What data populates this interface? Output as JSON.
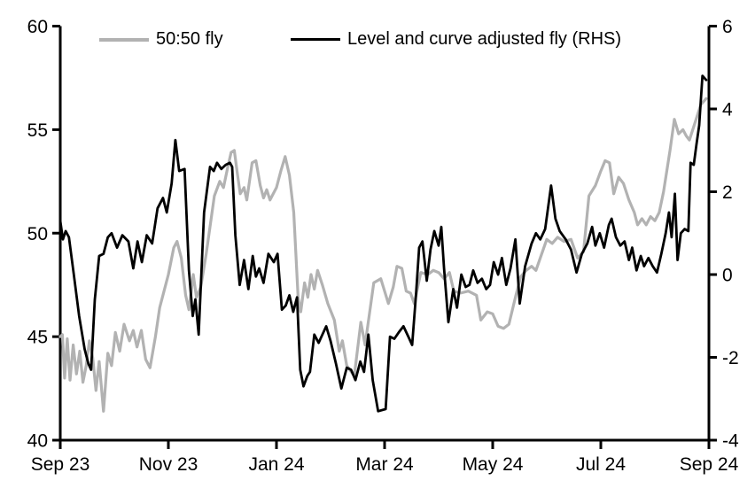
{
  "legend": [
    {
      "label": "50:50 fly"
    },
    {
      "label": "Level and curve adjusted fly (RHS)"
    }
  ],
  "chart_data": {
    "type": "line",
    "title": "",
    "xlabel": "",
    "ylabel_left": "",
    "ylabel_right": "",
    "x_tick_labels": [
      "Sep 23",
      "Nov 23",
      "Jan 24",
      "Mar 24",
      "May 24",
      "Jul 24",
      "Sep 24"
    ],
    "x_range_months": [
      0,
      12
    ],
    "left_axis": {
      "ticks": [
        40,
        45,
        50,
        55,
        60
      ],
      "range": [
        40,
        60
      ]
    },
    "right_axis": {
      "ticks": [
        -4,
        -2,
        0,
        2,
        4,
        6
      ],
      "range": [
        -4,
        6
      ]
    },
    "grid": false,
    "legend_position": "top",
    "axis_color": "#000000",
    "series": [
      {
        "name": "50:50 fly",
        "axis": "left",
        "color": "#b2b2b2",
        "width": 3.2,
        "points": [
          [
            0.0,
            45.0
          ],
          [
            0.04,
            45.1
          ],
          [
            0.08,
            43.0
          ],
          [
            0.13,
            44.9
          ],
          [
            0.18,
            42.9
          ],
          [
            0.24,
            44.6
          ],
          [
            0.3,
            43.2
          ],
          [
            0.36,
            44.3
          ],
          [
            0.42,
            42.8
          ],
          [
            0.48,
            43.6
          ],
          [
            0.54,
            44.8
          ],
          [
            0.6,
            44.0
          ],
          [
            0.66,
            42.4
          ],
          [
            0.72,
            43.8
          ],
          [
            0.8,
            41.4
          ],
          [
            0.88,
            44.2
          ],
          [
            0.95,
            43.6
          ],
          [
            1.02,
            45.2
          ],
          [
            1.1,
            44.3
          ],
          [
            1.18,
            45.6
          ],
          [
            1.28,
            44.8
          ],
          [
            1.35,
            45.3
          ],
          [
            1.42,
            44.5
          ],
          [
            1.5,
            45.3
          ],
          [
            1.58,
            43.9
          ],
          [
            1.66,
            43.5
          ],
          [
            1.76,
            45.0
          ],
          [
            1.84,
            46.4
          ],
          [
            1.92,
            47.2
          ],
          [
            2.0,
            48.0
          ],
          [
            2.1,
            49.3
          ],
          [
            2.16,
            49.6
          ],
          [
            2.24,
            48.8
          ],
          [
            2.32,
            47.0
          ],
          [
            2.38,
            46.3
          ],
          [
            2.46,
            48.0
          ],
          [
            2.52,
            46.9
          ],
          [
            2.6,
            47.4
          ],
          [
            2.7,
            49.0
          ],
          [
            2.85,
            51.8
          ],
          [
            2.95,
            52.5
          ],
          [
            3.02,
            52.2
          ],
          [
            3.1,
            53.2
          ],
          [
            3.16,
            53.9
          ],
          [
            3.22,
            54.0
          ],
          [
            3.28,
            52.8
          ],
          [
            3.33,
            51.9
          ],
          [
            3.4,
            52.2
          ],
          [
            3.45,
            51.6
          ],
          [
            3.55,
            53.4
          ],
          [
            3.62,
            53.5
          ],
          [
            3.7,
            52.3
          ],
          [
            3.76,
            51.7
          ],
          [
            3.82,
            52.1
          ],
          [
            3.88,
            51.6
          ],
          [
            4.0,
            52.2
          ],
          [
            4.08,
            53.0
          ],
          [
            4.16,
            53.7
          ],
          [
            4.24,
            52.8
          ],
          [
            4.32,
            51.0
          ],
          [
            4.4,
            46.9
          ],
          [
            4.45,
            46.2
          ],
          [
            4.52,
            47.6
          ],
          [
            4.58,
            46.9
          ],
          [
            4.64,
            48.0
          ],
          [
            4.7,
            47.3
          ],
          [
            4.76,
            48.2
          ],
          [
            4.85,
            47.5
          ],
          [
            4.95,
            46.6
          ],
          [
            5.07,
            45.8
          ],
          [
            5.16,
            44.3
          ],
          [
            5.22,
            44.8
          ],
          [
            5.3,
            43.6
          ],
          [
            5.44,
            43.1
          ],
          [
            5.56,
            45.7
          ],
          [
            5.64,
            44.6
          ],
          [
            5.8,
            47.6
          ],
          [
            5.93,
            47.8
          ],
          [
            6.07,
            46.6
          ],
          [
            6.16,
            47.4
          ],
          [
            6.23,
            48.4
          ],
          [
            6.32,
            48.3
          ],
          [
            6.4,
            47.2
          ],
          [
            6.48,
            47.1
          ],
          [
            6.55,
            46.6
          ],
          [
            6.67,
            48.1
          ],
          [
            6.8,
            48.0
          ],
          [
            6.9,
            48.2
          ],
          [
            7.0,
            48.1
          ],
          [
            7.1,
            47.8
          ],
          [
            7.2,
            48.1
          ],
          [
            7.28,
            47.2
          ],
          [
            7.4,
            47.1
          ],
          [
            7.55,
            47.2
          ],
          [
            7.7,
            47.0
          ],
          [
            7.78,
            45.8
          ],
          [
            7.9,
            46.2
          ],
          [
            8.0,
            46.1
          ],
          [
            8.1,
            45.5
          ],
          [
            8.2,
            45.4
          ],
          [
            8.3,
            45.6
          ],
          [
            8.43,
            47.0
          ],
          [
            8.52,
            47.9
          ],
          [
            8.62,
            48.2
          ],
          [
            8.72,
            48.4
          ],
          [
            8.8,
            48.2
          ],
          [
            9.0,
            49.7
          ],
          [
            9.1,
            49.5
          ],
          [
            9.2,
            49.8
          ],
          [
            9.32,
            49.6
          ],
          [
            9.45,
            49.7
          ],
          [
            9.57,
            48.8
          ],
          [
            9.68,
            49.1
          ],
          [
            9.78,
            51.8
          ],
          [
            9.9,
            52.3
          ],
          [
            10.0,
            53.0
          ],
          [
            10.08,
            53.5
          ],
          [
            10.16,
            53.4
          ],
          [
            10.24,
            51.9
          ],
          [
            10.33,
            52.7
          ],
          [
            10.42,
            52.4
          ],
          [
            10.52,
            51.6
          ],
          [
            10.62,
            51.0
          ],
          [
            10.68,
            50.4
          ],
          [
            10.76,
            50.7
          ],
          [
            10.84,
            50.4
          ],
          [
            10.92,
            50.8
          ],
          [
            11.0,
            50.6
          ],
          [
            11.08,
            51.0
          ],
          [
            11.16,
            52.0
          ],
          [
            11.28,
            54.0
          ],
          [
            11.36,
            55.5
          ],
          [
            11.44,
            54.8
          ],
          [
            11.52,
            55.0
          ],
          [
            11.58,
            54.7
          ],
          [
            11.64,
            54.5
          ],
          [
            11.75,
            55.4
          ],
          [
            11.85,
            56.2
          ],
          [
            11.95,
            56.5
          ]
        ]
      },
      {
        "name": "Level and curve adjusted fly (RHS)",
        "axis": "right",
        "color": "#000000",
        "width": 2.8,
        "points": [
          [
            0.0,
            1.3
          ],
          [
            0.05,
            0.85
          ],
          [
            0.1,
            1.05
          ],
          [
            0.16,
            0.9
          ],
          [
            0.25,
            0.0
          ],
          [
            0.35,
            -1.0
          ],
          [
            0.45,
            -1.8
          ],
          [
            0.52,
            -2.15
          ],
          [
            0.57,
            -2.3
          ],
          [
            0.64,
            -0.6
          ],
          [
            0.72,
            0.45
          ],
          [
            0.8,
            0.5
          ],
          [
            0.88,
            0.9
          ],
          [
            0.95,
            1.0
          ],
          [
            1.05,
            0.65
          ],
          [
            1.15,
            0.95
          ],
          [
            1.26,
            0.8
          ],
          [
            1.35,
            0.15
          ],
          [
            1.43,
            0.8
          ],
          [
            1.51,
            0.3
          ],
          [
            1.6,
            0.95
          ],
          [
            1.7,
            0.75
          ],
          [
            1.8,
            1.6
          ],
          [
            1.9,
            1.85
          ],
          [
            1.97,
            1.5
          ],
          [
            2.06,
            2.2
          ],
          [
            2.13,
            3.25
          ],
          [
            2.2,
            2.5
          ],
          [
            2.3,
            2.55
          ],
          [
            2.38,
            0.1
          ],
          [
            2.45,
            -1.0
          ],
          [
            2.5,
            -0.6
          ],
          [
            2.56,
            -1.45
          ],
          [
            2.66,
            1.5
          ],
          [
            2.77,
            2.6
          ],
          [
            2.84,
            2.5
          ],
          [
            2.9,
            2.7
          ],
          [
            2.98,
            2.55
          ],
          [
            3.06,
            2.65
          ],
          [
            3.14,
            2.7
          ],
          [
            3.18,
            2.6
          ],
          [
            3.24,
            0.95
          ],
          [
            3.32,
            -0.25
          ],
          [
            3.4,
            0.35
          ],
          [
            3.48,
            -0.35
          ],
          [
            3.56,
            0.45
          ],
          [
            3.62,
            -0.05
          ],
          [
            3.68,
            0.15
          ],
          [
            3.76,
            -0.2
          ],
          [
            3.85,
            0.5
          ],
          [
            3.95,
            0.3
          ],
          [
            4.02,
            0.5
          ],
          [
            4.1,
            -0.85
          ],
          [
            4.17,
            -0.75
          ],
          [
            4.24,
            -0.5
          ],
          [
            4.31,
            -0.9
          ],
          [
            4.38,
            -0.55
          ],
          [
            4.44,
            -2.3
          ],
          [
            4.5,
            -2.7
          ],
          [
            4.57,
            -2.45
          ],
          [
            4.62,
            -2.35
          ],
          [
            4.7,
            -1.45
          ],
          [
            4.78,
            -1.65
          ],
          [
            4.85,
            -1.45
          ],
          [
            4.92,
            -1.25
          ],
          [
            5.0,
            -1.6
          ],
          [
            5.1,
            -2.15
          ],
          [
            5.2,
            -2.75
          ],
          [
            5.3,
            -2.25
          ],
          [
            5.38,
            -2.3
          ],
          [
            5.46,
            -2.55
          ],
          [
            5.55,
            -2.1
          ],
          [
            5.62,
            -2.35
          ],
          [
            5.7,
            -1.45
          ],
          [
            5.78,
            -2.55
          ],
          [
            5.88,
            -3.3
          ],
          [
            6.02,
            -3.25
          ],
          [
            6.1,
            -1.5
          ],
          [
            6.18,
            -1.55
          ],
          [
            6.26,
            -1.4
          ],
          [
            6.35,
            -1.25
          ],
          [
            6.44,
            -1.5
          ],
          [
            6.51,
            -1.7
          ],
          [
            6.58,
            -0.5
          ],
          [
            6.64,
            0.65
          ],
          [
            6.7,
            0.8
          ],
          [
            6.78,
            -0.15
          ],
          [
            6.85,
            0.6
          ],
          [
            6.92,
            1.05
          ],
          [
            7.0,
            0.7
          ],
          [
            7.05,
            1.15
          ],
          [
            7.1,
            0.15
          ],
          [
            7.18,
            -1.15
          ],
          [
            7.27,
            -0.35
          ],
          [
            7.34,
            -0.8
          ],
          [
            7.42,
            0.0
          ],
          [
            7.5,
            -0.3
          ],
          [
            7.57,
            -0.25
          ],
          [
            7.64,
            0.1
          ],
          [
            7.72,
            -0.2
          ],
          [
            7.8,
            -0.1
          ],
          [
            7.88,
            -0.35
          ],
          [
            7.95,
            -0.25
          ],
          [
            8.02,
            0.3
          ],
          [
            8.1,
            0.0
          ],
          [
            8.17,
            0.4
          ],
          [
            8.25,
            -0.25
          ],
          [
            8.33,
            0.15
          ],
          [
            8.42,
            0.85
          ],
          [
            8.5,
            -0.7
          ],
          [
            8.6,
            0.2
          ],
          [
            8.72,
            0.75
          ],
          [
            8.8,
            1.0
          ],
          [
            8.88,
            0.85
          ],
          [
            8.97,
            1.1
          ],
          [
            9.08,
            2.15
          ],
          [
            9.16,
            1.35
          ],
          [
            9.24,
            1.05
          ],
          [
            9.35,
            0.85
          ],
          [
            9.45,
            0.6
          ],
          [
            9.55,
            0.05
          ],
          [
            9.65,
            0.5
          ],
          [
            9.75,
            0.75
          ],
          [
            9.84,
            1.15
          ],
          [
            9.9,
            0.7
          ],
          [
            9.98,
            1.0
          ],
          [
            10.06,
            0.65
          ],
          [
            10.15,
            1.2
          ],
          [
            10.2,
            1.35
          ],
          [
            10.28,
            0.9
          ],
          [
            10.36,
            0.7
          ],
          [
            10.44,
            0.8
          ],
          [
            10.52,
            0.35
          ],
          [
            10.58,
            0.65
          ],
          [
            10.66,
            0.1
          ],
          [
            10.74,
            0.45
          ],
          [
            10.8,
            0.2
          ],
          [
            10.88,
            0.4
          ],
          [
            10.96,
            0.2
          ],
          [
            11.04,
            0.05
          ],
          [
            11.12,
            0.5
          ],
          [
            11.2,
            1.0
          ],
          [
            11.26,
            1.5
          ],
          [
            11.31,
            0.9
          ],
          [
            11.37,
            1.95
          ],
          [
            11.42,
            0.35
          ],
          [
            11.48,
            1.0
          ],
          [
            11.55,
            1.1
          ],
          [
            11.62,
            1.05
          ],
          [
            11.66,
            2.7
          ],
          [
            11.72,
            2.65
          ],
          [
            11.77,
            3.15
          ],
          [
            11.82,
            3.6
          ],
          [
            11.88,
            4.8
          ],
          [
            11.95,
            4.7
          ]
        ]
      }
    ]
  }
}
